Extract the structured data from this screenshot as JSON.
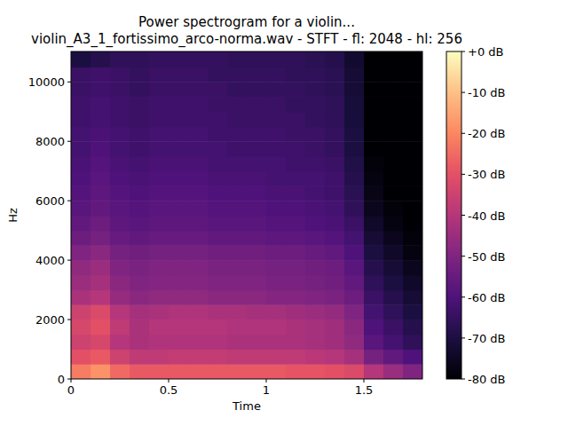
{
  "chart_data": {
    "type": "heatmap",
    "title": "Power spectrogram for a violin...",
    "subtitle": "violin_A3_1_fortissimo_arco-norma.wav - STFT - fl: 2048 - hl: 256",
    "x_label": "Time",
    "y_label": "Hz",
    "xlim": [
      0,
      1.8
    ],
    "xticks": [
      0,
      0.5,
      1,
      1.5
    ],
    "ylim": [
      0,
      11025
    ],
    "yticks": [
      0,
      2000,
      4000,
      6000,
      8000,
      10000
    ],
    "x_bins": [
      0,
      0.1,
      0.2,
      0.3,
      0.4,
      0.5,
      0.6,
      0.7,
      0.8,
      0.9,
      1.0,
      1.1,
      1.2,
      1.3,
      1.4,
      1.5,
      1.6,
      1.7,
      1.8
    ],
    "y_bins": [
      0,
      500,
      1000,
      1500,
      2000,
      2500,
      3000,
      3500,
      4000,
      4500,
      5000,
      5500,
      6000,
      6500,
      7000,
      7500,
      8000,
      8500,
      9000,
      9500,
      10000,
      10500,
      11025
    ],
    "values": [
      [
        -22,
        -18,
        -25,
        -28,
        -28,
        -28,
        -28,
        -28,
        -28,
        -28,
        -28,
        -29,
        -29,
        -30,
        -32,
        -40,
        -45,
        -50
      ],
      [
        -30,
        -28,
        -35,
        -38,
        -38,
        -37,
        -37,
        -37,
        -38,
        -38,
        -38,
        -38,
        -39,
        -40,
        -43,
        -52,
        -56,
        -60
      ],
      [
        -35,
        -33,
        -40,
        -42,
        -41,
        -41,
        -41,
        -41,
        -42,
        -42,
        -42,
        -42,
        -43,
        -44,
        -47,
        -58,
        -62,
        -66
      ],
      [
        -33,
        -30,
        -38,
        -42,
        -40,
        -40,
        -40,
        -40,
        -41,
        -41,
        -41,
        -42,
        -43,
        -44,
        -48,
        -60,
        -64,
        -68
      ],
      [
        -35,
        -32,
        -40,
        -43,
        -42,
        -41,
        -41,
        -42,
        -42,
        -43,
        -43,
        -44,
        -45,
        -46,
        -50,
        -62,
        -66,
        -70
      ],
      [
        -42,
        -40,
        -46,
        -48,
        -47,
        -47,
        -47,
        -48,
        -48,
        -48,
        -49,
        -49,
        -50,
        -51,
        -54,
        -64,
        -68,
        -72
      ],
      [
        -45,
        -43,
        -48,
        -50,
        -49,
        -49,
        -49,
        -50,
        -50,
        -50,
        -51,
        -51,
        -52,
        -53,
        -56,
        -66,
        -70,
        -74
      ],
      [
        -47,
        -45,
        -50,
        -51,
        -50,
        -50,
        -50,
        -51,
        -51,
        -51,
        -52,
        -52,
        -53,
        -54,
        -58,
        -68,
        -72,
        -76
      ],
      [
        -50,
        -48,
        -52,
        -53,
        -52,
        -52,
        -52,
        -53,
        -53,
        -53,
        -54,
        -54,
        -55,
        -56,
        -60,
        -70,
        -74,
        -78
      ],
      [
        -54,
        -52,
        -55,
        -56,
        -55,
        -55,
        -55,
        -56,
        -56,
        -56,
        -57,
        -57,
        -58,
        -59,
        -62,
        -72,
        -76,
        -79
      ],
      [
        -56,
        -54,
        -57,
        -58,
        -57,
        -57,
        -57,
        -58,
        -58,
        -58,
        -59,
        -59,
        -60,
        -61,
        -64,
        -74,
        -78,
        -80
      ],
      [
        -58,
        -56,
        -58,
        -59,
        -58,
        -58,
        -58,
        -59,
        -59,
        -59,
        -60,
        -60,
        -61,
        -62,
        -66,
        -76,
        -79,
        -80
      ],
      [
        -59,
        -57,
        -59,
        -60,
        -59,
        -59,
        -59,
        -60,
        -60,
        -60,
        -61,
        -61,
        -62,
        -63,
        -67,
        -77,
        -80,
        -80
      ],
      [
        -60,
        -58,
        -60,
        -61,
        -60,
        -60,
        -60,
        -61,
        -61,
        -61,
        -62,
        -62,
        -62,
        -63,
        -68,
        -78,
        -80,
        -80
      ],
      [
        -61,
        -59,
        -61,
        -62,
        -61,
        -61,
        -61,
        -62,
        -62,
        -62,
        -62,
        -63,
        -63,
        -64,
        -69,
        -79,
        -80,
        -80
      ],
      [
        -62,
        -60,
        -62,
        -63,
        -62,
        -62,
        -62,
        -62,
        -63,
        -63,
        -63,
        -63,
        -64,
        -65,
        -70,
        -80,
        -80,
        -80
      ],
      [
        -62,
        -61,
        -62,
        -63,
        -62,
        -62,
        -62,
        -63,
        -63,
        -63,
        -63,
        -64,
        -64,
        -65,
        -70,
        -80,
        -80,
        -80
      ],
      [
        -63,
        -62,
        -63,
        -64,
        -63,
        -63,
        -63,
        -63,
        -64,
        -64,
        -64,
        -64,
        -65,
        -66,
        -71,
        -80,
        -80,
        -80
      ],
      [
        -63,
        -62,
        -63,
        -64,
        -63,
        -63,
        -63,
        -64,
        -64,
        -64,
        -64,
        -65,
        -65,
        -66,
        -71,
        -80,
        -80,
        -80
      ],
      [
        -64,
        -63,
        -64,
        -65,
        -64,
        -64,
        -64,
        -64,
        -65,
        -65,
        -65,
        -65,
        -66,
        -67,
        -72,
        -80,
        -80,
        -80
      ],
      [
        -64,
        -63,
        -64,
        -65,
        -64,
        -64,
        -64,
        -65,
        -65,
        -65,
        -65,
        -66,
        -66,
        -67,
        -72,
        -80,
        -80,
        -80
      ],
      [
        -70,
        -68,
        -66,
        -66,
        -65,
        -65,
        -65,
        -65,
        -66,
        -66,
        -66,
        -66,
        -67,
        -68,
        -73,
        -80,
        -80,
        -80
      ]
    ],
    "color_range": [
      -80,
      0
    ],
    "color_ticks": [
      {
        "value": 0,
        "label": "+0 dB"
      },
      {
        "value": -10,
        "label": "-10 dB"
      },
      {
        "value": -20,
        "label": "-20 dB"
      },
      {
        "value": -30,
        "label": "-30 dB"
      },
      {
        "value": -40,
        "label": "-40 dB"
      },
      {
        "value": -50,
        "label": "-50 dB"
      },
      {
        "value": -60,
        "label": "-60 dB"
      },
      {
        "value": -70,
        "label": "-70 dB"
      },
      {
        "value": -80,
        "label": "-80 dB"
      }
    ]
  }
}
